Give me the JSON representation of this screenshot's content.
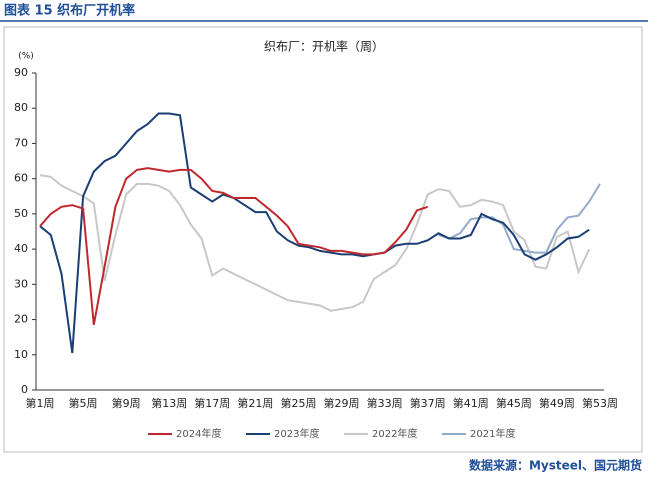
{
  "header": {
    "title": "图表 15 织布厂开机率"
  },
  "chart_data": {
    "type": "line",
    "title": "织布厂：开机率（周）",
    "y_unit": "(%)",
    "categories": [
      "第1周",
      null,
      null,
      null,
      "第5周",
      null,
      null,
      null,
      "第9周",
      null,
      null,
      null,
      "第13周",
      null,
      null,
      null,
      "第17周",
      null,
      null,
      null,
      "第21周",
      null,
      null,
      null,
      "第25周",
      null,
      null,
      null,
      "第29周",
      null,
      null,
      null,
      "第33周",
      null,
      null,
      null,
      "第37周",
      null,
      null,
      null,
      "第41周",
      null,
      null,
      null,
      "第45周",
      null,
      null,
      null,
      "第49周",
      null,
      null,
      null,
      "第53周"
    ],
    "ylim": [
      0,
      90
    ],
    "yticks": [
      0,
      10,
      20,
      30,
      40,
      50,
      60,
      70,
      80,
      90
    ],
    "legend": "bottom",
    "series": [
      {
        "name": "2024年度",
        "color": "#c0282f",
        "values": [
          46.5,
          50,
          52,
          52.5,
          51.5,
          18.5,
          35,
          52,
          60,
          62.5,
          63,
          62.5,
          62,
          62.5,
          62.5,
          60,
          56.5,
          56,
          54.5,
          54.5,
          54.5,
          52,
          49.5,
          46.5,
          41.5,
          41,
          40.5,
          39.5,
          39.5,
          39,
          38.5,
          38.5,
          39,
          42,
          45.5,
          51,
          52,
          null,
          null,
          null,
          null,
          null,
          null,
          null,
          null,
          null,
          null,
          null,
          null,
          null,
          null,
          null,
          null
        ]
      },
      {
        "name": "2023年度",
        "color": "#1b3f74",
        "values": [
          46.5,
          44,
          33,
          10.5,
          55,
          62,
          65,
          66.5,
          70,
          73.5,
          75.5,
          78.5,
          78.5,
          78,
          57.5,
          55.5,
          53.5,
          55.5,
          54.5,
          52.5,
          50.5,
          50.5,
          45,
          42.5,
          41,
          40.5,
          39.5,
          39,
          38.5,
          38.5,
          38,
          38.5,
          39,
          41,
          41.5,
          41.5,
          42.5,
          44.5,
          43,
          43,
          44,
          50,
          48.5,
          47.5,
          44,
          38.5,
          37,
          38.5,
          40.5,
          43,
          43.5,
          45.5,
          null
        ]
      },
      {
        "name": "2022年度",
        "color": "#c8c8c8",
        "values": [
          61,
          60.5,
          58,
          56.5,
          55,
          53,
          31,
          44,
          55.5,
          58.5,
          58.5,
          58,
          56.5,
          52.5,
          47,
          43,
          32.5,
          34.5,
          33,
          31.5,
          30,
          28.5,
          27,
          25.5,
          25,
          24.5,
          24,
          22.5,
          23,
          23.5,
          25,
          31.5,
          33.5,
          35.5,
          40,
          47,
          55.5,
          57,
          56.5,
          52,
          52.5,
          54,
          53.5,
          52.5,
          45,
          42.5,
          35,
          34.5,
          43.5,
          45,
          33.5,
          40,
          null
        ]
      },
      {
        "name": "2021年度",
        "color": "#93aac9",
        "values": [
          null,
          null,
          null,
          null,
          null,
          null,
          null,
          null,
          null,
          null,
          null,
          null,
          null,
          null,
          null,
          null,
          null,
          null,
          null,
          null,
          null,
          null,
          null,
          null,
          null,
          null,
          null,
          null,
          null,
          null,
          null,
          null,
          null,
          null,
          null,
          null,
          null,
          44,
          43,
          44.5,
          48.5,
          49,
          49,
          47,
          40,
          39.5,
          39,
          39,
          45.5,
          49,
          49.5,
          53.5,
          58.5
        ]
      }
    ]
  },
  "source": "数据来源：Mysteel、国元期货"
}
